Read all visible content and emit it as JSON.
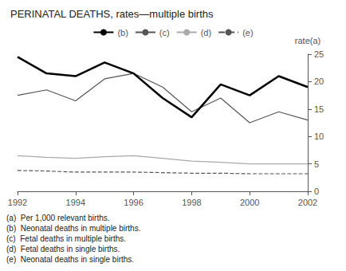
{
  "chart_data": {
    "type": "line",
    "title": "PERINATAL DEATHS, rates—multiple births",
    "ylabel": "rate(a)",
    "x": [
      1992,
      1993,
      1994,
      1995,
      1996,
      1997,
      1998,
      1999,
      2000,
      2001,
      2002
    ],
    "xlim": [
      1992,
      2002
    ],
    "xticks": [
      1992,
      1994,
      1996,
      1998,
      2000,
      2002
    ],
    "ylim": [
      0,
      25
    ],
    "yticks": [
      0,
      5,
      10,
      15,
      20,
      25
    ],
    "grid": false,
    "legend": "top",
    "series": [
      {
        "name": "(b)",
        "color": "#000000",
        "line_style": "solid",
        "values": [
          24.5,
          21.5,
          21.0,
          23.5,
          21.5,
          17.0,
          13.5,
          19.5,
          17.5,
          21.0,
          19.0
        ]
      },
      {
        "name": "(c)",
        "color": "#555555",
        "line_style": "solid",
        "values": [
          17.5,
          18.5,
          16.5,
          20.5,
          21.5,
          19.0,
          14.5,
          17.0,
          12.5,
          14.5,
          13.0
        ]
      },
      {
        "name": "(d)",
        "color": "#aaaaaa",
        "line_style": "solid",
        "values": [
          6.5,
          6.2,
          6.0,
          6.3,
          6.5,
          6.0,
          5.5,
          5.3,
          5.0,
          5.0,
          5.0
        ]
      },
      {
        "name": "(e)",
        "color": "#555555",
        "line_style": "dashed",
        "values": [
          3.8,
          3.7,
          3.5,
          3.5,
          3.5,
          3.4,
          3.3,
          3.3,
          3.2,
          3.2,
          3.2
        ]
      }
    ],
    "annotations": [
      "(a)  Per 1,000 relevant births.",
      "(b)  Neonatal deaths in multiple births.",
      "(c)  Fetal deaths in multiple births.",
      "(d)  Fetal deaths in single births.",
      "(e)  Neonatal deaths in single births."
    ]
  }
}
